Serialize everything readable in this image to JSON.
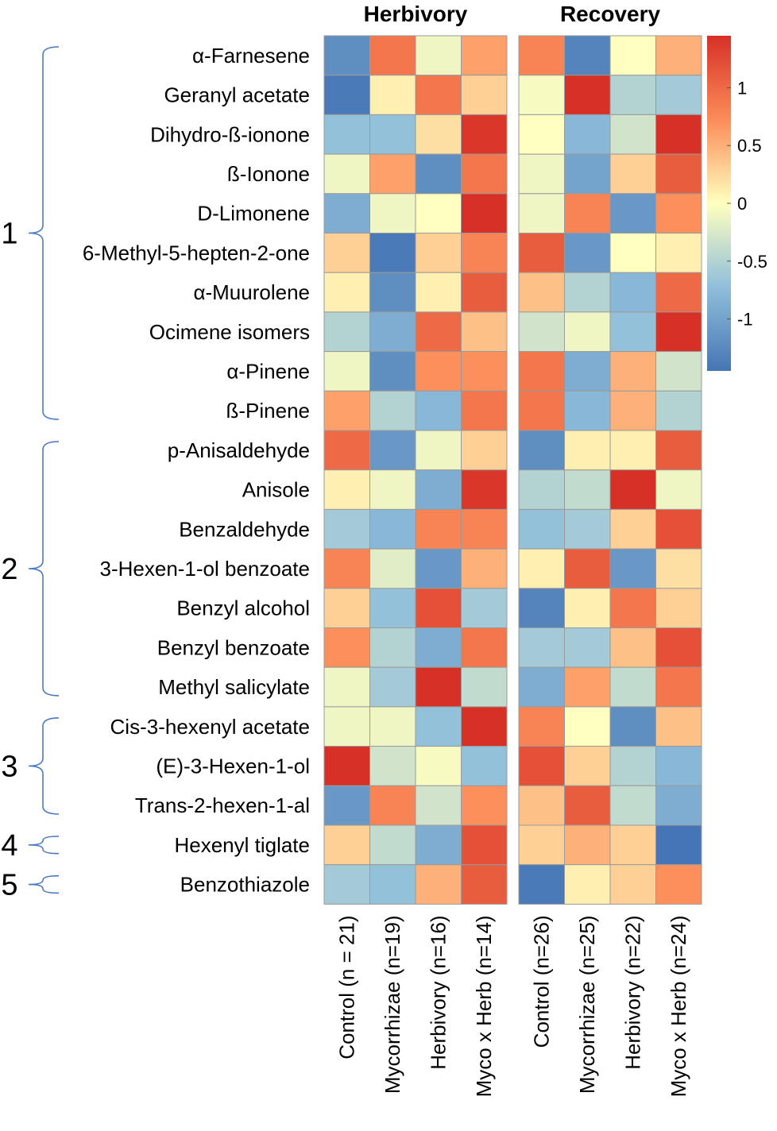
{
  "chart_data": {
    "type": "heatmap",
    "panels": [
      {
        "title": "Herbivory",
        "columns": [
          "Control  (n = 21)",
          "Mycorrhizae  (n=19)",
          "Herbivory  (n=16)",
          "Myco x Herb  (n=14)"
        ]
      },
      {
        "title": "Recovery",
        "columns": [
          "Control  (n=26)",
          "Mycorrhizae  (n=25)",
          "Herbivory  (n=22)",
          "Myco x Herb  (n=24)"
        ]
      }
    ],
    "rows": [
      "α-Farnesene",
      "Geranyl acetate",
      "Dihydro-ß-ionone",
      "ß-Ionone",
      "D-Limonene",
      "6-Methyl-5-hepten-2-one",
      "α-Muurolene",
      "Ocimene isomers",
      "α-Pinene",
      "ß-Pinene",
      "p-Anisaldehyde",
      "Anisole",
      "Benzaldehyde",
      "3-Hexen-1-ol benzoate",
      "Benzyl alcohol",
      "Benzyl benzoate",
      "Methyl salicylate",
      "Cis-3-hexenyl acetate",
      "(E)-3-Hexen-1-ol",
      "Trans-2-hexen-1-al",
      "Hexenyl tiglate",
      "Benzothiazole"
    ],
    "values": [
      [
        -1.2,
        0.9,
        -0.1,
        0.6,
        0.8,
        -1.3,
        0.0,
        0.5
      ],
      [
        -1.4,
        0.1,
        0.9,
        0.3,
        -0.05,
        1.5,
        -0.5,
        -0.6
      ],
      [
        -0.7,
        -0.7,
        0.2,
        1.4,
        0.0,
        -0.8,
        -0.3,
        1.5
      ],
      [
        -0.1,
        0.6,
        -1.2,
        0.9,
        -0.1,
        -1.0,
        0.3,
        1.1
      ],
      [
        -0.9,
        -0.1,
        0.0,
        1.5,
        -0.1,
        0.8,
        -1.1,
        0.7
      ],
      [
        0.3,
        -1.4,
        0.3,
        0.8,
        1.1,
        -1.1,
        0.0,
        0.1
      ],
      [
        0.1,
        -1.2,
        0.1,
        1.1,
        0.4,
        -0.5,
        -0.8,
        1.0
      ],
      [
        -0.5,
        -0.9,
        1.0,
        0.4,
        -0.3,
        -0.1,
        -0.7,
        1.5
      ],
      [
        -0.1,
        -1.2,
        0.7,
        0.7,
        0.9,
        -0.9,
        0.5,
        -0.3
      ],
      [
        0.6,
        -0.5,
        -0.8,
        0.9,
        0.9,
        -0.8,
        0.5,
        -0.5
      ],
      [
        1.0,
        -1.1,
        -0.1,
        0.3,
        -1.2,
        0.1,
        0.1,
        1.1
      ],
      [
        0.1,
        -0.1,
        -0.9,
        1.4,
        -0.5,
        -0.4,
        1.5,
        -0.1
      ],
      [
        -0.6,
        -0.8,
        0.8,
        0.8,
        -0.7,
        -0.6,
        0.3,
        1.2
      ],
      [
        0.8,
        -0.2,
        -1.1,
        0.5,
        0.1,
        1.1,
        -1.1,
        0.2
      ],
      [
        0.3,
        -0.7,
        1.2,
        -0.6,
        -1.3,
        0.1,
        0.9,
        0.3
      ],
      [
        0.7,
        -0.5,
        -0.9,
        0.9,
        -0.6,
        -0.6,
        0.4,
        1.2
      ],
      [
        -0.1,
        -0.6,
        1.5,
        -0.4,
        -0.9,
        0.6,
        -0.4,
        0.9
      ],
      [
        -0.1,
        -0.1,
        -0.7,
        1.5,
        0.8,
        0.0,
        -1.2,
        0.4
      ],
      [
        1.5,
        -0.3,
        -0.05,
        -0.7,
        1.2,
        0.3,
        -0.5,
        -0.8
      ],
      [
        -1.1,
        0.8,
        -0.3,
        0.7,
        0.4,
        1.1,
        -0.4,
        -0.9
      ],
      [
        0.3,
        -0.4,
        -0.9,
        1.2,
        0.3,
        0.5,
        0.3,
        -1.5
      ],
      [
        -0.6,
        -0.7,
        0.5,
        1.1,
        -1.4,
        0.1,
        0.3,
        0.7
      ]
    ],
    "groups": [
      {
        "label": "1",
        "start": 0,
        "end": 9
      },
      {
        "label": "2",
        "start": 10,
        "end": 16
      },
      {
        "label": "3",
        "start": 17,
        "end": 19
      },
      {
        "label": "4",
        "start": 20,
        "end": 20
      },
      {
        "label": "5",
        "start": 21,
        "end": 21
      }
    ],
    "legend": {
      "range": [
        -1.45,
        1.45
      ],
      "ticks": [
        1,
        0.5,
        0,
        -0.5,
        -1
      ],
      "tick_labels": [
        "1",
        "0.5",
        "0",
        "-0.5",
        "-1"
      ],
      "placement": "right"
    },
    "colors": {
      "low": "#4575b4",
      "mid_low": "#91bfdb",
      "neutral": "#ffffbf",
      "mid_high": "#fc8d59",
      "high": "#d73027",
      "cell_border": "#9a9a9a",
      "brace": "#4a7bc4"
    }
  }
}
